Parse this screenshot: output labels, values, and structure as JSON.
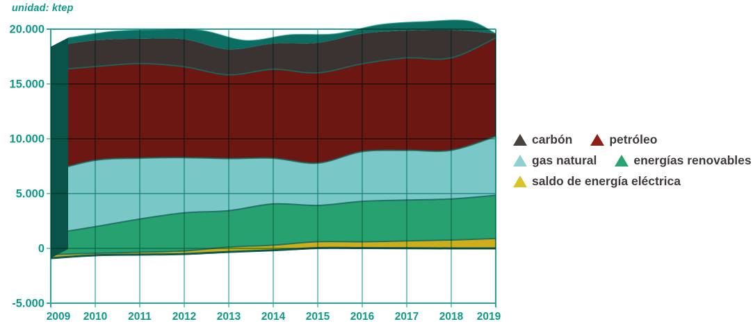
{
  "unit_label": "unidad: ktep",
  "colors": {
    "axis_text": "#0d9a8b",
    "grid": "#2fa296",
    "depth_top_face": "#0c6e62",
    "depth_side_face": "#0a5348",
    "layer_edge_line": "#16695e",
    "bottom_edge_line": "#0e5a4d",
    "legend_text": "#3e3a39",
    "background": "#ffffff"
  },
  "legend": {
    "items": [
      {
        "label": "carbón",
        "color": "#4a413f"
      },
      {
        "label": "petróleo",
        "color": "#8e1f16"
      },
      {
        "label": "gas natural",
        "color": "#8fd0d0"
      },
      {
        "label": "energías renovables",
        "color": "#2aa374"
      },
      {
        "label": "saldo de energía eléctrica",
        "color": "#dcc32c"
      }
    ]
  },
  "chart_data": {
    "type": "area",
    "stacked": true,
    "unit": "ktep",
    "title": "unidad: ktep",
    "categories": [
      "2009",
      "2010",
      "2011",
      "2012",
      "2013",
      "2014",
      "2015",
      "2016",
      "2017",
      "2018",
      "2019"
    ],
    "y_axis": {
      "min": -5000,
      "max": 20000,
      "tick_step": 5000,
      "tick_values": [
        20000,
        15000,
        10000,
        5000,
        0,
        -5000
      ],
      "tick_labels": [
        "20.000",
        "15.000",
        "10.000",
        "5.000",
        "0",
        "-5.000"
      ]
    },
    "grid": true,
    "legend_position": "right",
    "baseline": [
      -890,
      -630,
      -570,
      -510,
      -320,
      -170,
      30,
      30,
      20,
      0,
      0
    ],
    "series": [
      {
        "id": "saldo",
        "name": "saldo de energía eléctrica",
        "color": "#cead1d",
        "values": [
          320,
          190,
          220,
          280,
          440,
          460,
          580,
          570,
          660,
          760,
          900
        ]
      },
      {
        "id": "energias_renovables",
        "name": "energías renovables",
        "color": "#27a170",
        "values": [
          1900,
          2420,
          3030,
          3470,
          3320,
          3770,
          3310,
          3690,
          3730,
          3750,
          3940
        ]
      },
      {
        "id": "gas_natural",
        "name": "gas natural",
        "color": "#79c7c6",
        "values": [
          5700,
          6060,
          5550,
          5040,
          4750,
          4160,
          3860,
          4540,
          4530,
          4440,
          5380
        ]
      },
      {
        "id": "petroleo",
        "name": "petróleo",
        "color": "#6d1712",
        "values": [
          9200,
          8550,
          8630,
          8290,
          7640,
          8120,
          8230,
          8010,
          8440,
          8430,
          8970
        ]
      },
      {
        "id": "carbon",
        "name": "carbón",
        "color": "#3b3332",
        "values": [
          2160,
          2390,
          2260,
          2500,
          2320,
          2340,
          2740,
          2750,
          2490,
          2550,
          410
        ]
      }
    ]
  }
}
